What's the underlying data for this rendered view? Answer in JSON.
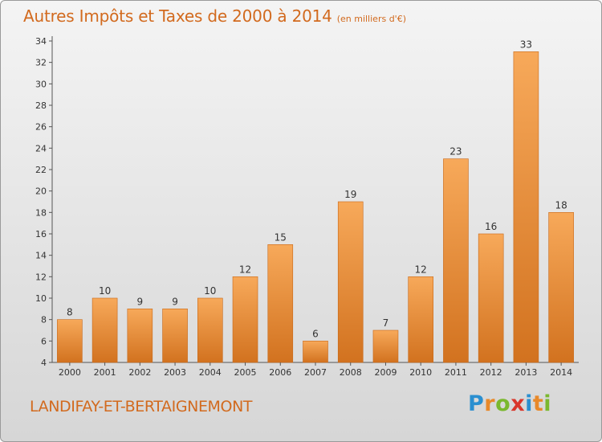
{
  "title": "Autres Impôts et Taxes de 2000 à 2014",
  "unit_note": "(en milliers d'€)",
  "commune": "LANDIFAY-ET-BERTAIGNEMONT",
  "logo": {
    "letters": [
      "P",
      "r",
      "o",
      "x",
      "i",
      "t",
      "i"
    ],
    "colors": [
      "#2a8fd0",
      "#e8892a",
      "#7ab82e",
      "#d9362b",
      "#2a8fd0",
      "#e8892a",
      "#7ab82e"
    ]
  },
  "colors": {
    "bar_top": "#f7a95a",
    "bar_bottom": "#d2721f",
    "title": "#d26a1e"
  },
  "chart_data": {
    "type": "bar",
    "categories": [
      "2000",
      "2001",
      "2002",
      "2003",
      "2004",
      "2005",
      "2006",
      "2007",
      "2008",
      "2009",
      "2010",
      "2011",
      "2012",
      "2013",
      "2014"
    ],
    "values": [
      8,
      10,
      9,
      9,
      10,
      12,
      15,
      6,
      19,
      7,
      12,
      23,
      16,
      33,
      18
    ],
    "ylim": [
      4,
      34
    ],
    "yticks": [
      4,
      6,
      8,
      10,
      12,
      14,
      16,
      18,
      20,
      22,
      24,
      26,
      28,
      30,
      32,
      34
    ],
    "grid": false
  }
}
